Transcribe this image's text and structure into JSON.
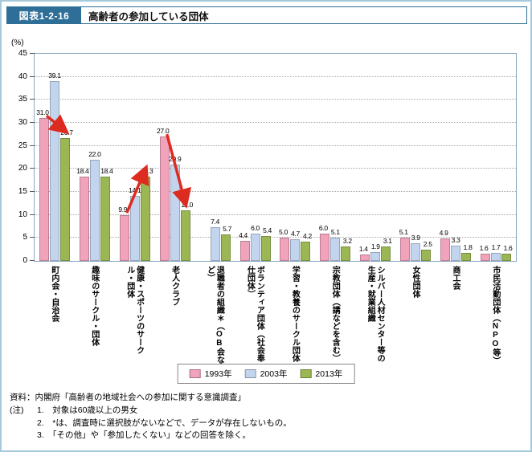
{
  "header": {
    "figure_label": "図表1-2-16",
    "title": "高齢者の参加している団体"
  },
  "chart_data": {
    "type": "bar",
    "title": "高齢者の参加している団体",
    "unit": "(%)",
    "ylabel": "(%)",
    "ylim": [
      0,
      45
    ],
    "ytick_step": 5,
    "grid": "dotted-horizontal",
    "legend_position": "bottom",
    "categories": [
      "町内会・自治会",
      "趣味のサークル・団体",
      "健康・スポーツのサークル・団体",
      "老人クラブ",
      "退職者の組織＊（OB会など）",
      "ボランティア団体（社会奉仕団体）",
      "学習・教養のサークル団体",
      "宗教団体（講などを含む）",
      "シルバー人材センター等の生産・就業組織",
      "女性団体",
      "商工会",
      "市民活動団体（NPO等）"
    ],
    "series": [
      {
        "name": "1993年",
        "color": "#f0a3bb",
        "values": [
          31.0,
          18.4,
          9.9,
          27.0,
          null,
          4.4,
          5.0,
          6.0,
          1.4,
          5.1,
          4.9,
          1.6
        ]
      },
      {
        "name": "2003年",
        "color": "#c3d5ee",
        "values": [
          39.1,
          22.0,
          14.1,
          20.9,
          7.4,
          6.0,
          4.7,
          5.1,
          1.9,
          3.9,
          3.3,
          1.7
        ]
      },
      {
        "name": "2013年",
        "color": "#9ab754",
        "values": [
          26.7,
          18.4,
          18.3,
          11.0,
          5.7,
          5.4,
          4.2,
          3.2,
          3.1,
          2.5,
          1.8,
          1.6
        ]
      }
    ],
    "annotations": {
      "arrow_color": "#dd2b20",
      "trend_arrows": [
        {
          "category_index": 0,
          "from_series": 0,
          "to_series": 2,
          "direction": "down"
        },
        {
          "category_index": 2,
          "from_series": 0,
          "to_series": 2,
          "direction": "up"
        },
        {
          "category_index": 3,
          "from_series": 0,
          "to_series": 2,
          "direction": "down"
        }
      ]
    }
  },
  "footer": {
    "source": "資料：内閣府「高齢者の地域社会への参加に関する意識調査」",
    "note_label": "(注)",
    "notes": [
      "1.　対象は60歳以上の男女",
      "2.　*は、調査時に選択肢がないなどで、データが存在しないもの。",
      "3.　「その他」や「参加したくない」などの回答を除く。"
    ]
  }
}
